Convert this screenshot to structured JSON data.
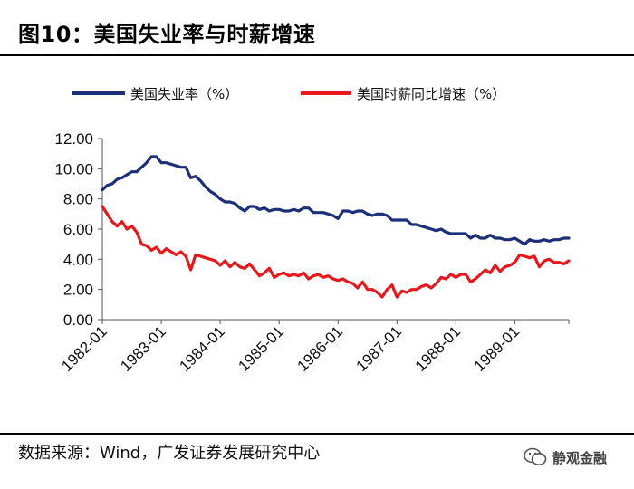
{
  "header": {
    "title": "图10：美国失业率与时薪增速"
  },
  "footer": {
    "source": "数据来源：Wind，广发证券发展研究中心",
    "brand": "静观金融"
  },
  "colors": {
    "unemployment": "#1B2F7A",
    "wage": "#E8171B",
    "axis": "#666666"
  },
  "chart_data": {
    "type": "line",
    "title": "美国失业率与时薪增速",
    "ylim": [
      0,
      12
    ],
    "yticks": [
      "0.00",
      "2.00",
      "4.00",
      "6.00",
      "8.00",
      "10.00",
      "12.00"
    ],
    "x_tick_labels": [
      "1982-01",
      "1983-01",
      "1984-01",
      "1985-01",
      "1986-01",
      "1987-01",
      "1988-01",
      "1989-01"
    ],
    "x_start_month": 0,
    "x_end_month": 95,
    "legend_position": "top",
    "series": [
      {
        "name": "美国失业率（%）",
        "color": "#1B2F7A",
        "values": [
          8.6,
          8.9,
          9.0,
          9.3,
          9.4,
          9.6,
          9.8,
          9.8,
          10.1,
          10.4,
          10.8,
          10.8,
          10.4,
          10.4,
          10.3,
          10.2,
          10.1,
          10.1,
          9.4,
          9.5,
          9.2,
          8.8,
          8.5,
          8.3,
          8.0,
          7.8,
          7.8,
          7.7,
          7.4,
          7.2,
          7.5,
          7.5,
          7.3,
          7.4,
          7.2,
          7.3,
          7.3,
          7.2,
          7.2,
          7.3,
          7.2,
          7.4,
          7.4,
          7.1,
          7.1,
          7.1,
          7.0,
          6.9,
          6.7,
          7.2,
          7.2,
          7.1,
          7.2,
          7.2,
          7.0,
          6.9,
          7.0,
          7.0,
          6.9,
          6.6,
          6.6,
          6.6,
          6.6,
          6.3,
          6.3,
          6.2,
          6.1,
          6.0,
          5.9,
          6.0,
          5.8,
          5.7,
          5.7,
          5.7,
          5.7,
          5.4,
          5.6,
          5.4,
          5.4,
          5.6,
          5.4,
          5.4,
          5.3,
          5.3,
          5.4,
          5.2,
          5.0,
          5.3,
          5.2,
          5.2,
          5.3,
          5.2,
          5.3,
          5.3,
          5.4,
          5.4
        ]
      },
      {
        "name": "美国时薪同比增速（%）",
        "color": "#E8171B",
        "values": [
          7.5,
          7.0,
          6.5,
          6.2,
          6.5,
          6.0,
          6.2,
          5.8,
          5.0,
          4.9,
          4.6,
          4.8,
          4.4,
          4.7,
          4.5,
          4.3,
          4.5,
          4.2,
          3.3,
          4.3,
          4.2,
          4.1,
          4.0,
          3.9,
          3.6,
          3.9,
          3.5,
          3.8,
          3.5,
          3.4,
          3.7,
          3.3,
          2.9,
          3.1,
          3.4,
          2.8,
          3.0,
          3.1,
          2.9,
          3.0,
          2.9,
          3.1,
          2.7,
          2.9,
          3.0,
          2.8,
          2.9,
          2.7,
          2.6,
          2.7,
          2.5,
          2.4,
          2.1,
          2.5,
          2.0,
          2.0,
          1.8,
          1.5,
          2.0,
          2.3,
          1.5,
          1.9,
          1.8,
          2.0,
          2.0,
          2.2,
          2.3,
          2.1,
          2.4,
          2.8,
          2.7,
          3.0,
          2.8,
          3.0,
          3.0,
          2.5,
          2.7,
          3.0,
          3.3,
          3.1,
          3.6,
          3.2,
          3.5,
          3.6,
          3.8,
          4.3,
          4.2,
          4.1,
          4.2,
          3.5,
          3.9,
          4.0,
          3.8,
          3.8,
          3.7,
          3.9
        ]
      }
    ]
  }
}
